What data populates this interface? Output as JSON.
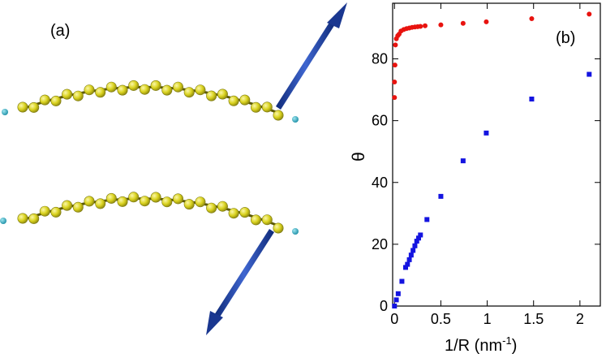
{
  "panel_a": {
    "label": "(a)",
    "bead_color": "#d9d21e",
    "bead_edge_color": "#7d7a10",
    "chain_color": "#5b5800",
    "end_atom_color": "#27b3c8",
    "arrow_color": "#1f3f9e"
  },
  "panel_b": {
    "label": "(b)"
  },
  "chart_data": {
    "type": "scatter",
    "title": "",
    "xlabel_base": "1/R (nm",
    "xlabel_sup": "-1",
    "xlabel_tail": ")",
    "ylabel": "θ",
    "xlim": [
      -0.02,
      2.22
    ],
    "ylim": [
      0,
      98
    ],
    "x_ticks": [
      0,
      0.5,
      1,
      1.5,
      2
    ],
    "x_tick_labels": [
      "0",
      "0.5",
      "1",
      "1.5",
      "2"
    ],
    "y_ticks": [
      0,
      20,
      40,
      60,
      80
    ],
    "y_tick_labels": [
      "0",
      "20",
      "40",
      "60",
      "80"
    ],
    "grid": false,
    "series": [
      {
        "marker": "circle",
        "color": "#e8130f",
        "x": [
          0,
          0,
          0.005,
          0.01,
          0.02,
          0.035,
          0.05,
          0.07,
          0.1,
          0.13,
          0.16,
          0.19,
          0.22,
          0.25,
          0.28,
          0.33,
          0.5,
          0.74,
          0.99,
          1.48,
          2.1
        ],
        "y": [
          67.5,
          72.5,
          78,
          84.5,
          86.5,
          87.5,
          88,
          89,
          89.5,
          89.8,
          90,
          90.2,
          90.3,
          90.4,
          90.5,
          90.7,
          91,
          91.5,
          92,
          93,
          94.5
        ]
      },
      {
        "marker": "square",
        "color": "#1414e0",
        "x": [
          0,
          0.02,
          0.04,
          0.08,
          0.12,
          0.14,
          0.16,
          0.18,
          0.2,
          0.22,
          0.24,
          0.26,
          0.28,
          0.35,
          0.5,
          0.74,
          0.99,
          1.48,
          2.1
        ],
        "y": [
          0,
          2,
          4,
          8,
          12.5,
          13.5,
          15,
          16.5,
          18,
          19.5,
          21,
          22,
          23,
          28,
          35.5,
          47,
          56,
          67,
          75
        ]
      }
    ]
  }
}
